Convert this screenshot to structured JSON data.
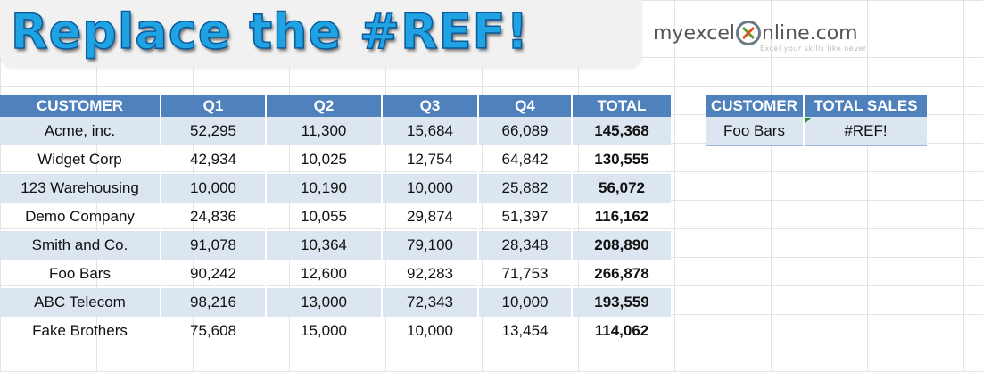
{
  "title": "Replace the #REF!",
  "logo": {
    "part1": "myexcel",
    "part2": "nline.com",
    "tagline": "Excel your skills like never"
  },
  "main_table": {
    "headers": [
      "CUSTOMER",
      "Q1",
      "Q2",
      "Q3",
      "Q4",
      "TOTAL"
    ],
    "rows": [
      [
        "Acme, inc.",
        "52,295",
        "11,300",
        "15,684",
        "66,089",
        "145,368"
      ],
      [
        "Widget Corp",
        "42,934",
        "10,025",
        "12,754",
        "64,842",
        "130,555"
      ],
      [
        "123 Warehousing",
        "10,000",
        "10,190",
        "10,000",
        "25,882",
        "56,072"
      ],
      [
        "Demo Company",
        "24,836",
        "10,055",
        "29,874",
        "51,397",
        "116,162"
      ],
      [
        "Smith and Co.",
        "91,078",
        "10,364",
        "79,100",
        "28,348",
        "208,890"
      ],
      [
        "Foo Bars",
        "90,242",
        "12,600",
        "92,283",
        "71,753",
        "266,878"
      ],
      [
        "ABC Telecom",
        "98,216",
        "13,000",
        "72,343",
        "10,000",
        "193,559"
      ],
      [
        "Fake Brothers",
        "75,608",
        "15,000",
        "10,000",
        "13,454",
        "114,062"
      ]
    ]
  },
  "lookup_table": {
    "headers": [
      "CUSTOMER",
      "TOTAL SALES"
    ],
    "rows": [
      [
        "Foo Bars",
        "#REF!"
      ]
    ]
  },
  "colors": {
    "header": "#4f81bd",
    "band": "#dce6f1",
    "title": "#1fa3e3"
  }
}
